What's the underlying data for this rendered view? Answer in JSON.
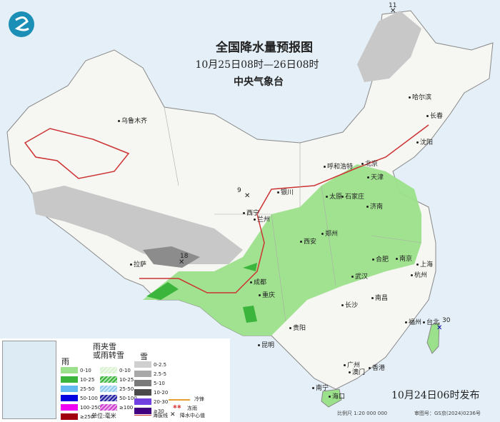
{
  "title": "全国降水量预报图",
  "period": "10月25日08时—26日08时",
  "issuer": "中央气象台",
  "issued": "10月24日06时发布",
  "scale": "比例尺 1:20 000 000",
  "review_no": "审图号：GS京(2024)0236号",
  "colors": {
    "sea": "#e4eff7",
    "land": "#f6f6f3",
    "rain_light": "#9be08a",
    "rain_moderate": "#3cb53c",
    "snow_light": "#c8c8c8",
    "snow_moderate": "#8c8c8c",
    "boundary": "#b44"
  },
  "cities": [
    "乌鲁木齐",
    "哈尔滨",
    "长春",
    "沈阳",
    "北京",
    "天津",
    "呼和浩特",
    "银川",
    "太原",
    "石家庄",
    "济南",
    "西宁",
    "兰州",
    "郑州",
    "西安",
    "合肥",
    "南京",
    "上海",
    "杭州",
    "武汉",
    "成都",
    "重庆",
    "拉萨",
    "南昌",
    "长沙",
    "福州",
    "台北",
    "贵阳",
    "昆明",
    "广州",
    "澳门",
    "香港",
    "南宁",
    "海口"
  ],
  "centers": [
    "11",
    "9",
    "18",
    "30"
  ],
  "legend": {
    "rain": {
      "title": "雨",
      "items": [
        "0-10",
        "10-25",
        "25-50",
        "50-100",
        "100-250",
        "≥250"
      ],
      "colors": [
        "#9be08a",
        "#3cb53c",
        "#62b8f0",
        "#0000e0",
        "#f000f0",
        "#a00010"
      ]
    },
    "sleet": {
      "title": "雨夹雪\n或雨转雪",
      "items": [
        "0-10",
        "10-25",
        "25-50",
        "50-100",
        "≥100"
      ],
      "colors": [
        "#d8f2d0",
        "#3cb53c",
        "#8ecbee",
        "#2020a0",
        "#d040d0"
      ]
    },
    "snow": {
      "title": "雪",
      "items": [
        "0-2.5",
        "2.5-5",
        "5-10",
        "10-20",
        "20-30",
        "≥30"
      ],
      "colors": [
        "#cfcfcf",
        "#a8a8a8",
        "#7a7a7a",
        "#4a4a4a",
        "#7040e0",
        "#400080"
      ]
    },
    "unit": "单位:毫米",
    "others": [
      "冷锋",
      "冻雨",
      "海拔线",
      "降水中心值"
    ]
  }
}
